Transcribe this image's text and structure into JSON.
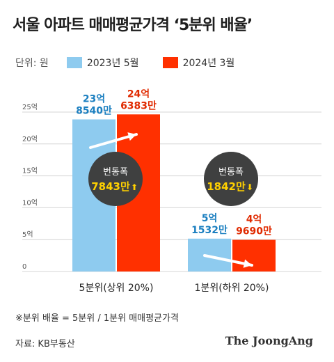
{
  "title": "서울 아파트 매매평균가격 ‘5분위 배율’",
  "legend": {
    "unit": "단위: 원",
    "items": [
      {
        "label": "2023년 5월",
        "color": "#8ecbef"
      },
      {
        "label": "2024년 3월",
        "color": "#ff3000"
      }
    ]
  },
  "colors": {
    "bar_2023": "#8ecbef",
    "bar_2024": "#ff3000",
    "label_2023": "#1b7fc0",
    "label_2024": "#e02a00",
    "circle": "#3f4040",
    "circle_value": "#ffd100",
    "axis": "#d4d4d4"
  },
  "chart_data": {
    "type": "bar",
    "categories": [
      "5분위(상위 20%)",
      "1분위(하위 20%)"
    ],
    "series": [
      {
        "name": "2023년 5월",
        "values": [
          23.854,
          5.1532
        ],
        "labels": [
          [
            "23억",
            "8540만"
          ],
          [
            "5억",
            "1532만"
          ]
        ]
      },
      {
        "name": "2024년 3월",
        "values": [
          24.6383,
          4.969
        ],
        "labels": [
          [
            "24억",
            "6383만"
          ],
          [
            "4억",
            "9690만"
          ]
        ]
      }
    ],
    "ylim": [
      0,
      25
    ],
    "yticks": [
      {
        "value": 0,
        "label": "0"
      },
      {
        "value": 5,
        "label": "5억"
      },
      {
        "value": 10,
        "label": "10억"
      },
      {
        "value": 15,
        "label": "15억"
      },
      {
        "value": 20,
        "label": "20억"
      },
      {
        "value": 25,
        "label": "25억"
      }
    ],
    "annotations": [
      {
        "title": "번동폭",
        "value": "7843만",
        "direction": "up",
        "arrow": "⬆"
      },
      {
        "title": "번동폭",
        "value": "1842만",
        "direction": "down",
        "arrow": "⬇"
      }
    ]
  },
  "footnote": "※분위 배율 = 5분위 / 1분위 매매평균가격",
  "source": "자료: KB부동산",
  "logo": "The JoongAng"
}
